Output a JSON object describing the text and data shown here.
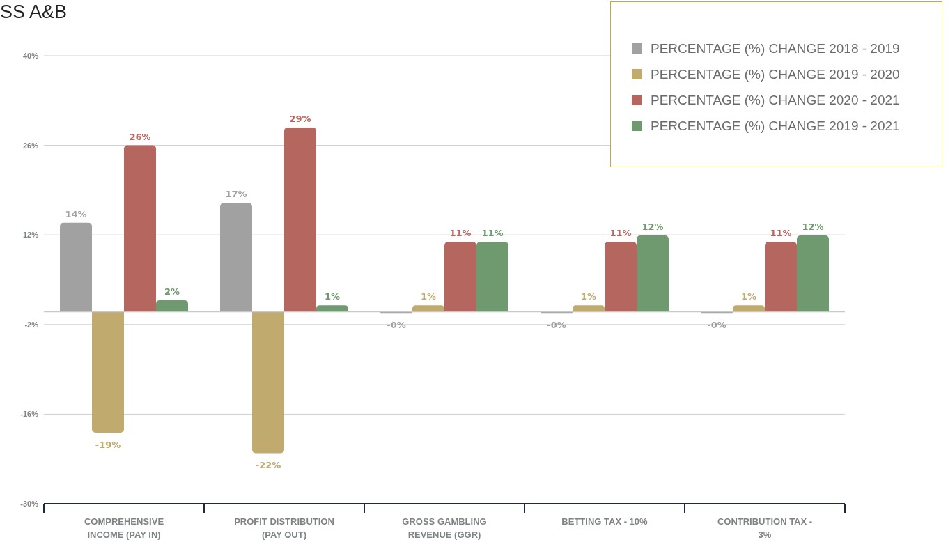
{
  "chart_data": {
    "type": "bar",
    "title": "SS A&B",
    "categories": [
      "COMPREHENSIVE INCOME (PAY IN)",
      "PROFIT DISTRIBUTION (PAY OUT)",
      "GROSS GAMBLING REVENUE (GGR)",
      "BETTING TAX - 10%",
      "CONTRIBUTION TAX - 3%"
    ],
    "series": [
      {
        "name": "PERCENTAGE (%) CHANGE 2018 - 2019",
        "color": "#a0a1a0",
        "values": [
          13.9,
          17,
          -0.2,
          -0.2,
          -0.2
        ],
        "value_labels": [
          "14%",
          "17%",
          "-0%",
          "-0%",
          "-0%"
        ]
      },
      {
        "name": "PERCENTAGE (%) CHANGE 2019 - 2020",
        "color": "#c0aa6e",
        "values": [
          -18.9,
          -22.1,
          1,
          1,
          1
        ],
        "value_labels": [
          "-19%",
          "-22%",
          "1%",
          "1%",
          "1%"
        ]
      },
      {
        "name": "PERCENTAGE (%) CHANGE 2020 - 2021",
        "color": "#b5665f",
        "values": [
          26,
          28.8,
          10.9,
          10.9,
          10.9
        ],
        "value_labels": [
          "26%",
          "29%",
          "11%",
          "11%",
          "11%"
        ]
      },
      {
        "name": "PERCENTAGE (%) CHANGE 2019 - 2021",
        "color": "#6f9a70",
        "values": [
          1.8,
          1,
          10.9,
          11.9,
          11.9
        ],
        "value_labels": [
          "2%",
          "1%",
          "11%",
          "12%",
          "12%"
        ]
      }
    ],
    "ylim": [
      -30,
      40
    ],
    "yticks": [
      {
        "value": -30,
        "label": "-30%"
      },
      {
        "value": -16,
        "label": "-16%"
      },
      {
        "value": -2,
        "label": "-2%"
      },
      {
        "value": 12,
        "label": "12%"
      },
      {
        "value": 26,
        "label": "26%"
      },
      {
        "value": 40,
        "label": "40%"
      }
    ],
    "ref_lines": [
      {
        "axis": "y",
        "value": 0,
        "color": "#c8c8c8"
      }
    ],
    "grid": "y",
    "legend": "top right"
  }
}
